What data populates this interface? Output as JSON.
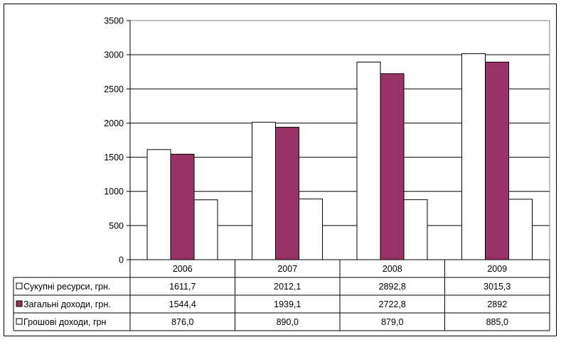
{
  "chart_data": {
    "type": "bar",
    "title": "",
    "xlabel": "",
    "ylabel": "",
    "categories": [
      "2006",
      "2007",
      "2008",
      "2009"
    ],
    "ylim": [
      0,
      3500
    ],
    "yticks": [
      "0",
      "500",
      "1000",
      "1500",
      "2000",
      "2500",
      "3000",
      "3500"
    ],
    "grid": true,
    "legend": "data-table-left",
    "series": [
      {
        "name": "Сукупні ресурси, грн.",
        "color": "#ffffff",
        "values": [
          1611.7,
          2012.1,
          2892.8,
          3015.3
        ],
        "labels": [
          "1611,7",
          "2012,1",
          "2892,8",
          "3015,3"
        ]
      },
      {
        "name": "Загальні доходи, грн.",
        "color": "#993366",
        "values": [
          1544.4,
          1939.1,
          2722.8,
          2892
        ],
        "labels": [
          "1544,4",
          "1939,1",
          "2722,8",
          "2892"
        ]
      },
      {
        "name": "Грошові доходи, грн",
        "color": "#ffffff",
        "values": [
          876.0,
          890.0,
          879.0,
          885.0
        ],
        "labels": [
          "876,0",
          "890,0",
          "879,0",
          "885,0"
        ]
      }
    ]
  }
}
